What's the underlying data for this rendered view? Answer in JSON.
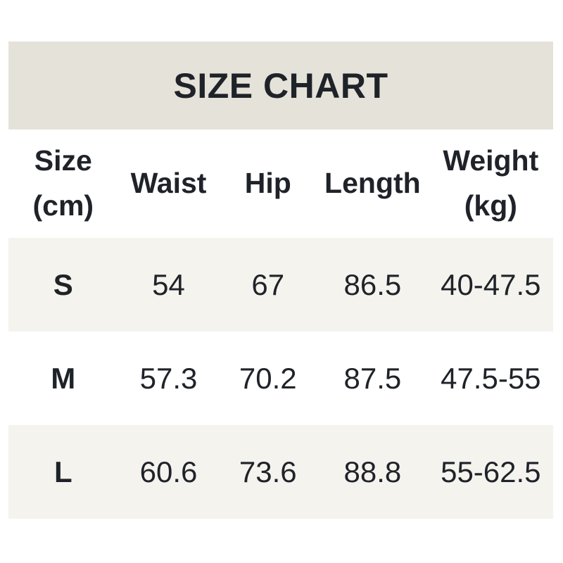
{
  "colors": {
    "page_bg": "#ffffff",
    "title_bar_bg": "#e5e2d9",
    "row_alt_bg": "#f5f3ee",
    "text_color": "#1f2329"
  },
  "chart_data": {
    "type": "table",
    "title": "SIZE CHART",
    "columns": [
      "Size (cm)",
      "Waist",
      "Hip",
      "Length",
      "Weight (kg)"
    ],
    "rows": [
      [
        "S",
        "54",
        "67",
        "86.5",
        "40-47.5"
      ],
      [
        "M",
        "57.3",
        "70.2",
        "87.5",
        "47.5-55"
      ],
      [
        "L",
        "60.6",
        "73.6",
        "88.8",
        "55-62.5"
      ]
    ],
    "layout": "header row white, data rows alternate beige/white/beige, all cells center-aligned"
  },
  "display": {
    "header_lines": [
      [
        "Size",
        "(cm)"
      ],
      [
        "Waist"
      ],
      [
        "Hip"
      ],
      [
        "Length"
      ],
      [
        "Weight",
        "(kg)"
      ]
    ]
  }
}
